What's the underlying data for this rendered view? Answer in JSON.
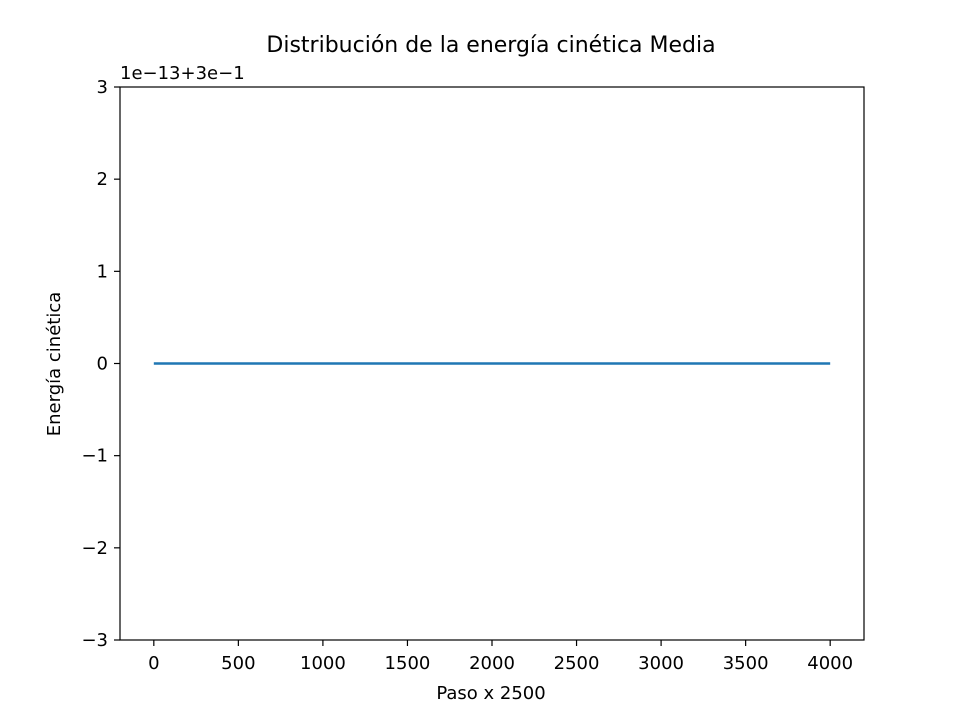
{
  "chart_data": {
    "type": "line",
    "title": "Distribución de la energía cinética Media",
    "xlabel": "Paso x 2500",
    "ylabel": "Energía cinética",
    "offset_text": "1e−13+3e−1",
    "xlim": [
      -200,
      4200
    ],
    "ylim": [
      -3,
      3
    ],
    "xticks": [
      0,
      500,
      1000,
      1500,
      2000,
      2500,
      3000,
      3500,
      4000
    ],
    "xtick_labels": [
      "0",
      "500",
      "1000",
      "1500",
      "2000",
      "2500",
      "3000",
      "3500",
      "4000"
    ],
    "yticks": [
      3,
      2,
      1,
      0,
      -1,
      -2,
      -3
    ],
    "ytick_labels": [
      "3",
      "2",
      "1",
      "0",
      "−1",
      "−2",
      "−3"
    ],
    "grid": false,
    "legend": "none",
    "series": [
      {
        "color": "#1f77b4",
        "x": [
          0,
          4000
        ],
        "y": [
          0,
          0
        ]
      }
    ]
  }
}
